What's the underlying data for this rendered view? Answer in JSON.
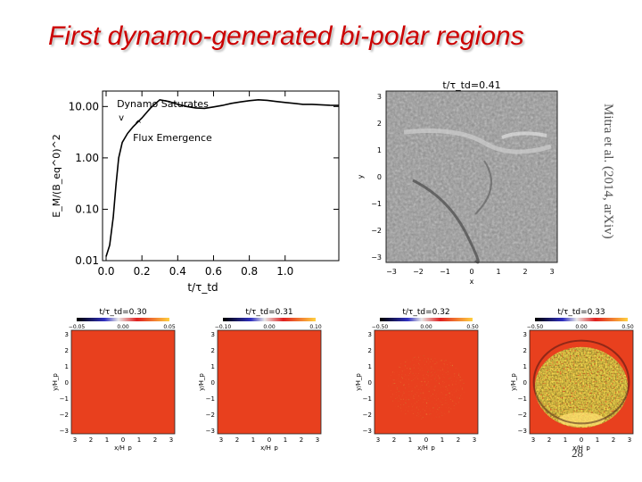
{
  "slide": {
    "title": "First dynamo-generated bi-polar regions",
    "citation": "Mitra et al. (2014, arXiv)",
    "page_number": "28"
  },
  "chart_data": [
    {
      "type": "line",
      "ylabel": "E_M/(B_eq^0)^2",
      "xlabel": "t/τ_td",
      "yscale": "log",
      "ylim": [
        0.01,
        20
      ],
      "xlim": [
        -0.02,
        1.3
      ],
      "yticks": [
        "10.00",
        "1.00",
        "0.10",
        "0.01"
      ],
      "xticks": [
        "0.0",
        "0.2",
        "0.4",
        "0.6",
        "0.8",
        "1.0"
      ],
      "annotations": [
        {
          "text": "Dynamo Saturates",
          "at_x": 0.1
        },
        {
          "text": "Flux Emergence",
          "at_x": 0.14
        }
      ],
      "series": [
        {
          "x": [
            0.0,
            0.02,
            0.04,
            0.055,
            0.07,
            0.09,
            0.12,
            0.15,
            0.2,
            0.25,
            0.3,
            0.35,
            0.4,
            0.45,
            0.5,
            0.55,
            0.6,
            0.65,
            0.7,
            0.75,
            0.8,
            0.85,
            0.9,
            0.95,
            1.0,
            1.05,
            1.1,
            1.15,
            1.2,
            1.25,
            1.3
          ],
          "y": [
            0.012,
            0.02,
            0.07,
            0.3,
            1.0,
            2.0,
            3.0,
            4.0,
            6.0,
            9.5,
            13.5,
            12.5,
            11.0,
            10.0,
            9.4,
            9.2,
            9.8,
            10.5,
            11.5,
            12.3,
            13.0,
            13.5,
            13.2,
            12.5,
            12.0,
            11.5,
            11.0,
            11.0,
            10.8,
            10.6,
            10.5
          ]
        }
      ]
    },
    {
      "type": "heatmap",
      "title": "t/τ_td=0.41",
      "xlabel": "x",
      "ylabel": "y",
      "xticks": [
        "−3",
        "−2",
        "−1",
        "0",
        "1",
        "2",
        "3"
      ],
      "yticks": [
        "3",
        "2",
        "1",
        "0",
        "−1",
        "−2",
        "−3"
      ]
    },
    {
      "type": "heatmap",
      "title": "t/τ_td=0.30",
      "colorbar": [
        "−0.05",
        "0.00",
        "0.05"
      ],
      "xlabel": "x/H_p",
      "ylabel": "y/H_p"
    },
    {
      "type": "heatmap",
      "title": "t/τ_td=0.31",
      "colorbar": [
        "−0.10",
        "0.00",
        "0.10"
      ],
      "xlabel": "x/H_p",
      "ylabel": "y/H_p"
    },
    {
      "type": "heatmap",
      "title": "t/τ_td=0.32",
      "colorbar": [
        "−0.50",
        "0.00",
        "0.50"
      ],
      "xlabel": "x/H_p",
      "ylabel": "y/H_p"
    },
    {
      "type": "heatmap",
      "title": "t/τ_td=0.33",
      "colorbar": [
        "−0.50",
        "0.00",
        "0.50"
      ],
      "xlabel": "x/H_p",
      "ylabel": "y/H_p"
    }
  ],
  "small_axis": {
    "yticks": [
      "3",
      "2",
      "1",
      "0",
      "−1",
      "−2",
      "−3"
    ],
    "xticks": [
      "3",
      "2",
      "1",
      "0",
      "1",
      "2",
      "3"
    ]
  }
}
